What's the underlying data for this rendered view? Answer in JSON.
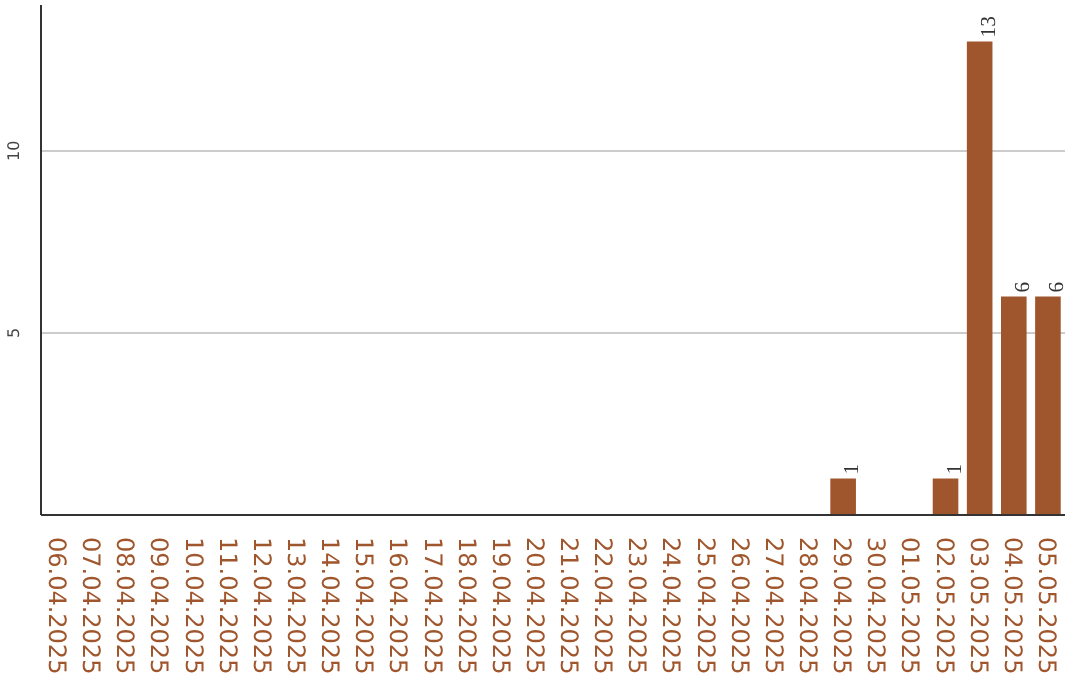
{
  "chart_data": {
    "type": "bar",
    "categories": [
      "06.04.2025",
      "07.04.2025",
      "08.04.2025",
      "09.04.2025",
      "10.04.2025",
      "11.04.2025",
      "12.04.2025",
      "13.04.2025",
      "14.04.2025",
      "15.04.2025",
      "16.04.2025",
      "17.04.2025",
      "18.04.2025",
      "19.04.2025",
      "20.04.2025",
      "21.04.2025",
      "22.04.2025",
      "23.04.2025",
      "24.04.2025",
      "25.04.2025",
      "26.04.2025",
      "27.04.2025",
      "28.04.2025",
      "29.04.2025",
      "30.04.2025",
      "01.05.2025",
      "02.05.2025",
      "03.05.2025",
      "04.05.2025",
      "05.05.2025"
    ],
    "values": [
      0,
      0,
      0,
      0,
      0,
      0,
      0,
      0,
      0,
      0,
      0,
      0,
      0,
      0,
      0,
      0,
      0,
      0,
      0,
      0,
      0,
      0,
      0,
      1,
      0,
      0,
      1,
      13,
      6,
      6
    ],
    "value_labels": [
      null,
      null,
      null,
      null,
      null,
      null,
      null,
      null,
      null,
      null,
      null,
      null,
      null,
      null,
      null,
      null,
      null,
      null,
      null,
      null,
      null,
      null,
      null,
      "1",
      null,
      null,
      "1",
      "13",
      "6",
      "6"
    ],
    "color": "#a0562c",
    "ylim": [
      0,
      14
    ],
    "yticks": [
      5,
      10
    ],
    "grid": "y"
  }
}
